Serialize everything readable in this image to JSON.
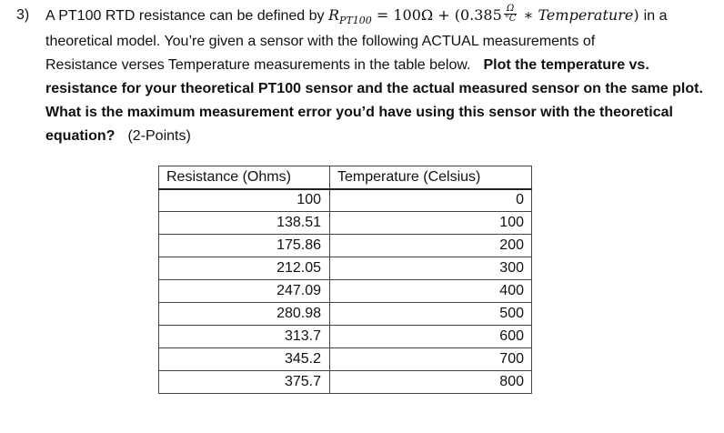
{
  "problem": {
    "number": "3)",
    "line1_text_a": "A PT100 RTD resistance can be defined by ",
    "math": {
      "r_symbol": "R",
      "r_subscript": "PT100",
      "eq_part": " = 100Ω + (0.385",
      "frac_num": "Ω",
      "frac_den": "°C",
      "times_part": " ∗ ",
      "temperature_word": "Temperature",
      "close_paren": ")"
    },
    "line1_text_b": " in a",
    "line2": "theoretical model.  You’re given a sensor with the following ACTUAL measurements of",
    "line3_normal": "Resistance verses Temperature measurements in the table below.",
    "line3_bold": "Plot the temperature vs.",
    "line4_bold": "resistance for your theoretical PT100 sensor and the actual measured sensor on the same plot.",
    "line5_bold": "What is the maximum measurement error you’d have using this sensor with the theoretical",
    "line6_bold": "equation?",
    "line6_points": "(2-Points)"
  },
  "table": {
    "headers": [
      "Resistance (Ohms)",
      "Temperature (Celsius)"
    ],
    "rows": [
      [
        "100",
        "0"
      ],
      [
        "138.51",
        "100"
      ],
      [
        "175.86",
        "200"
      ],
      [
        "212.05",
        "300"
      ],
      [
        "247.09",
        "400"
      ],
      [
        "280.98",
        "500"
      ],
      [
        "313.7",
        "600"
      ],
      [
        "345.2",
        "700"
      ],
      [
        "375.7",
        "800"
      ]
    ]
  }
}
